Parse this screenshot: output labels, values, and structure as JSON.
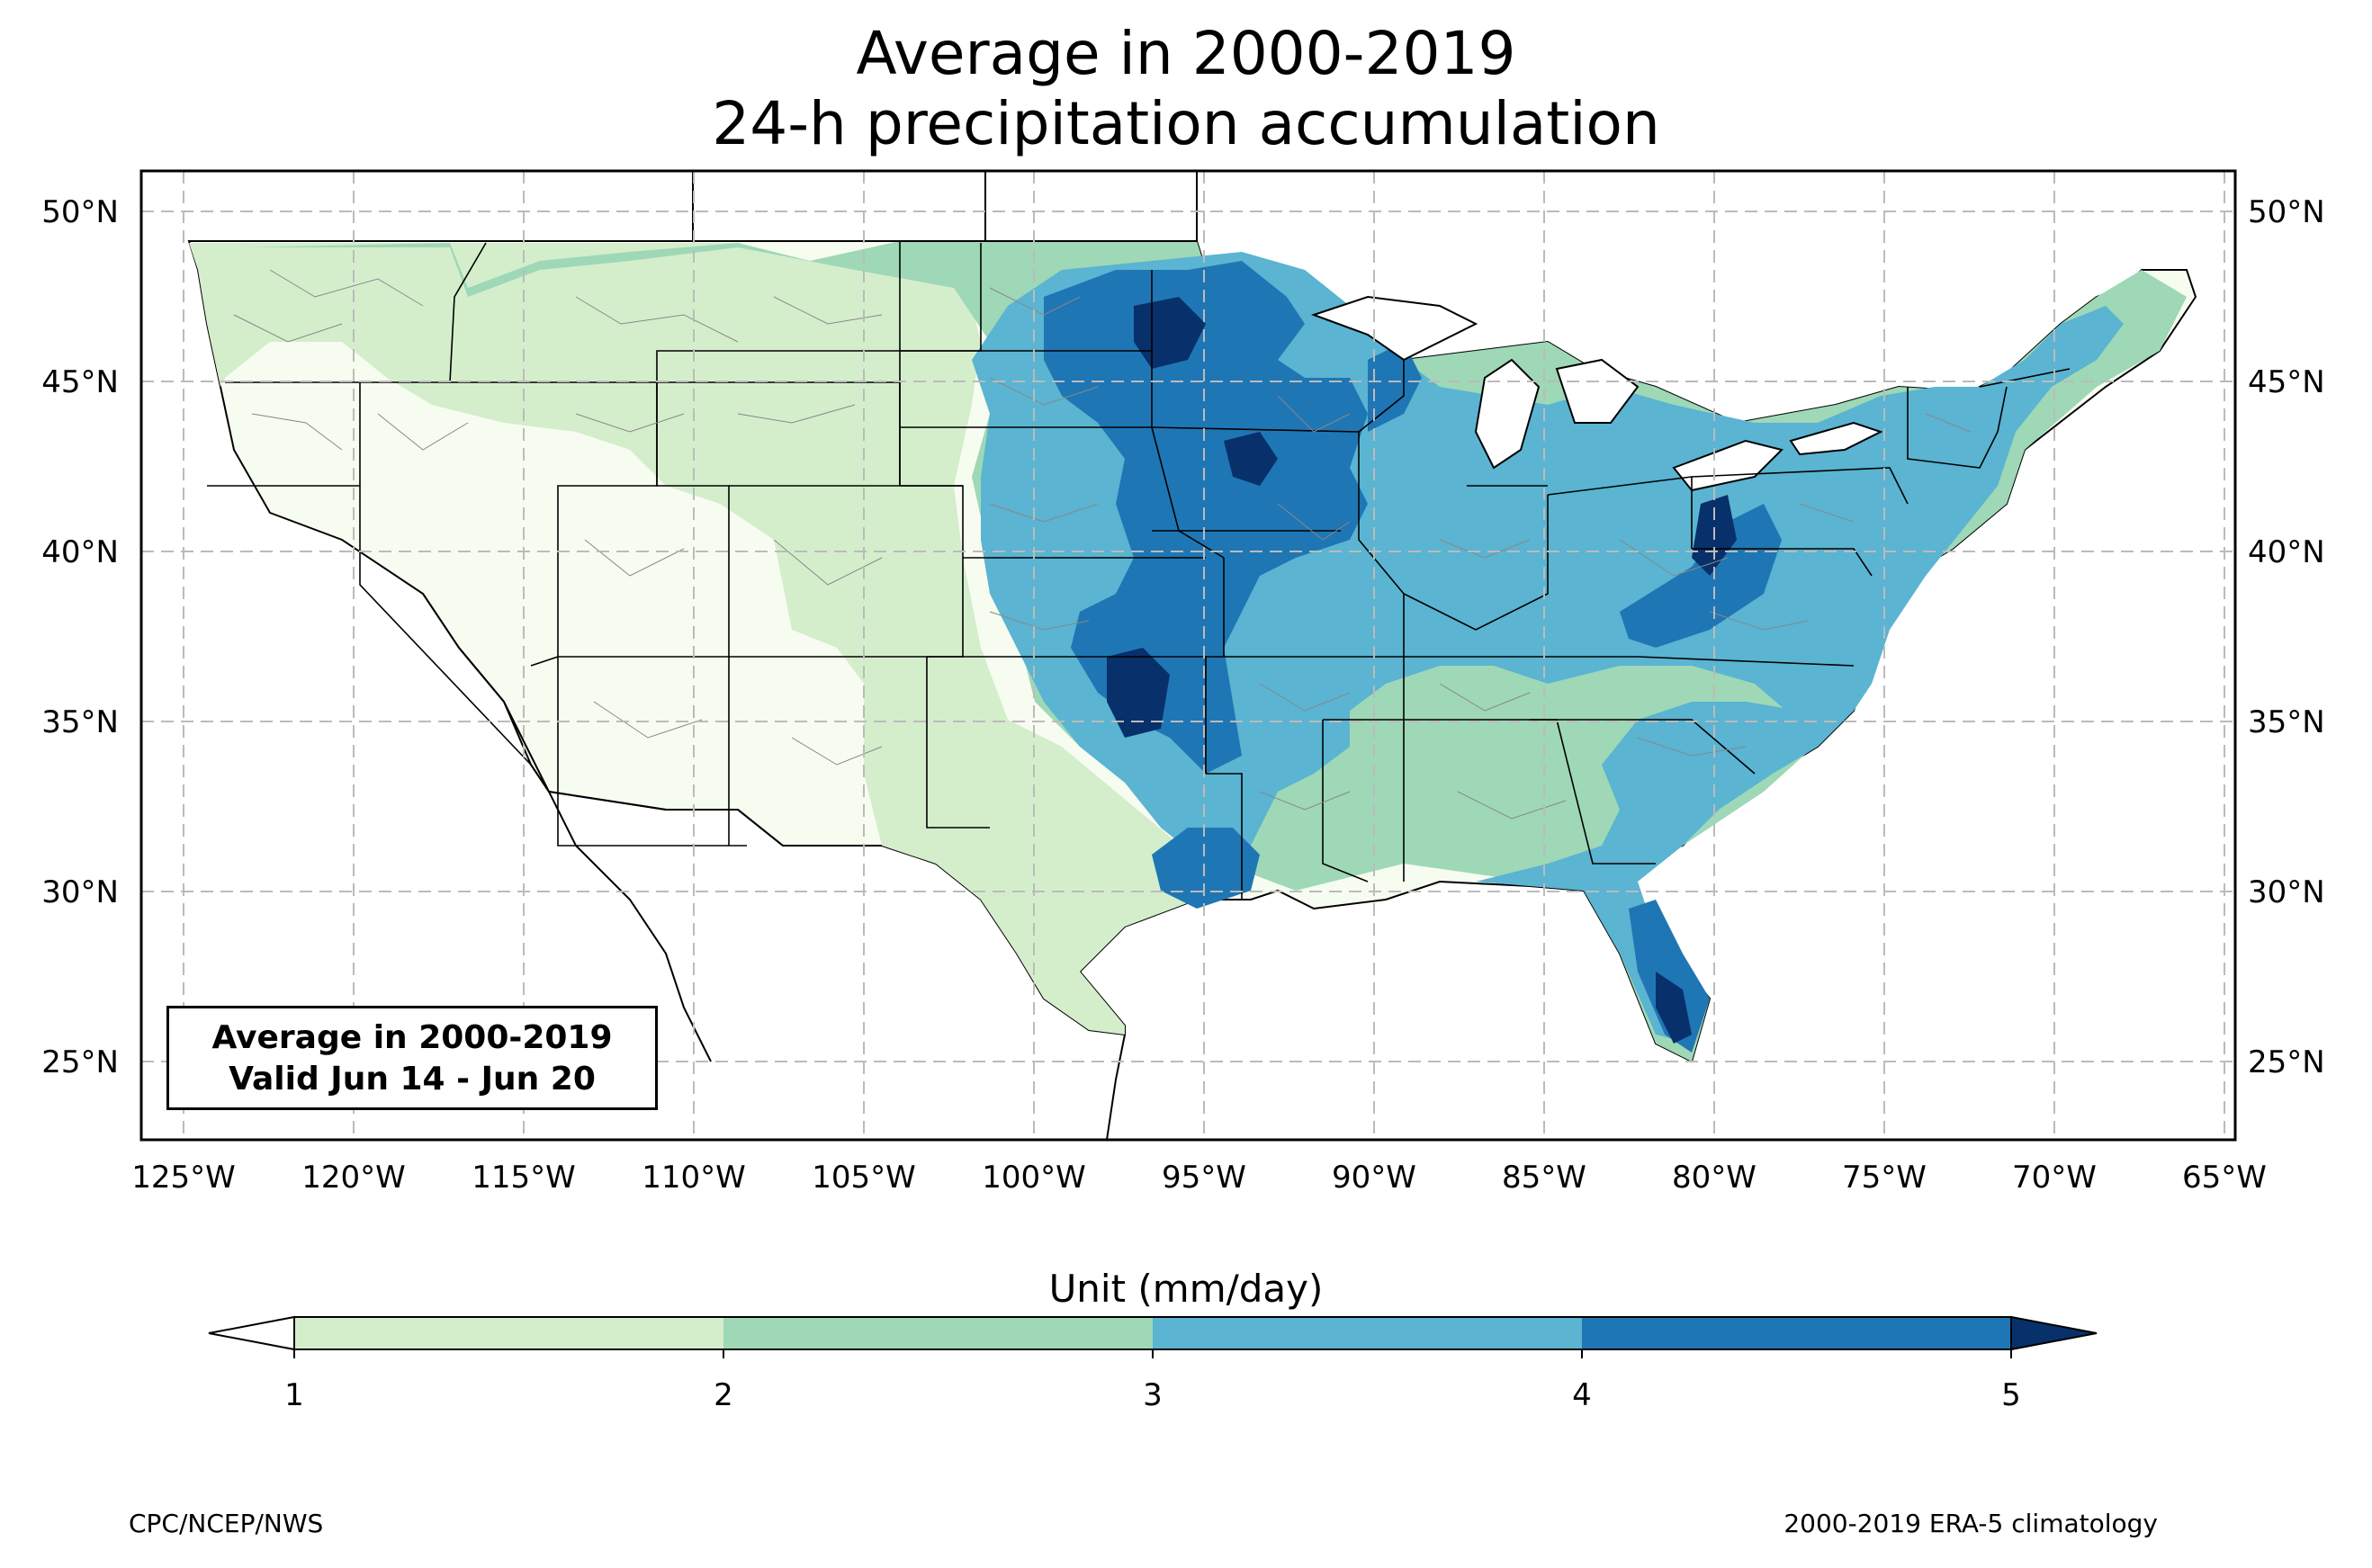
{
  "title_line1": "Average in 2000-2019",
  "title_line2": "24-h precipitation accumulation",
  "info_box": {
    "line1": "Average in 2000-2019",
    "line2": "Valid Jun 14 - Jun 20"
  },
  "colorbar": {
    "label": "Unit (mm/day)",
    "ticks": [
      "1",
      "2",
      "3",
      "4",
      "5"
    ],
    "levels": [
      1,
      2,
      3,
      4,
      5
    ],
    "colors": {
      "below_1": "#f7fcf0",
      "1_to_2": "#d4eecc",
      "2_to_3": "#9ed8b6",
      "3_to_4": "#5ab4d2",
      "4_to_5": "#1f76b4",
      "above_5": "#08306b"
    }
  },
  "map": {
    "lat_ticks": [
      "25°N",
      "30°N",
      "35°N",
      "40°N",
      "45°N",
      "50°N"
    ],
    "lon_ticks": [
      "125°W",
      "120°W",
      "115°W",
      "110°W",
      "105°W",
      "100°W",
      "95°W",
      "90°W",
      "85°W",
      "80°W",
      "75°W",
      "70°W",
      "65°W"
    ],
    "lat_range": [
      22.8,
      51.2
    ],
    "lon_range": [
      -126.2,
      -64.9
    ],
    "gridlines": true,
    "region": "CONUS"
  },
  "footer": {
    "left": "CPC/NCEP/NWS",
    "right": "2000-2019 ERA-5 climatology"
  }
}
